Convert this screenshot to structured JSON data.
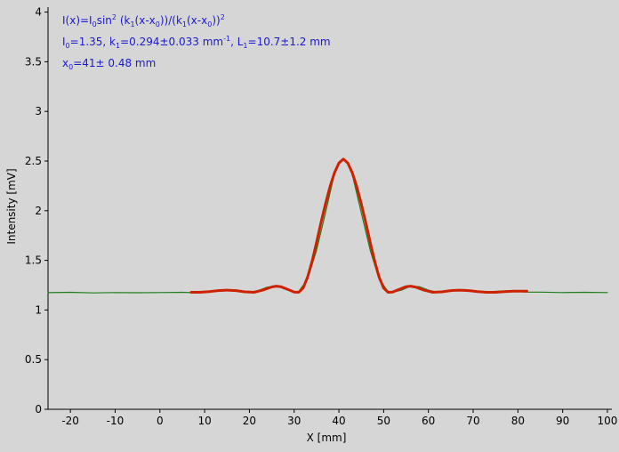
{
  "chart_data": {
    "type": "line",
    "title": "",
    "xlabel": "X [mm]",
    "ylabel": "Intensity [mV]",
    "xlim": [
      -25,
      101
    ],
    "ylim": [
      0,
      4.05
    ],
    "x_ticks": [
      -20,
      -10,
      0,
      10,
      20,
      30,
      40,
      50,
      60,
      70,
      80,
      90,
      100
    ],
    "y_ticks": [
      0,
      0.5,
      1,
      1.5,
      2,
      2.5,
      3,
      3.5,
      4
    ],
    "grid": false,
    "colors": {
      "background": "#d6d6d6",
      "axes": "#000000",
      "measured": "#1e7d1e",
      "fit": "#cc2200",
      "annotation": "#1a1acc"
    },
    "annotation": {
      "formula": {
        "p1": "I(x)=I",
        "s1": "0",
        "p2": "sin",
        "sup1": "2",
        "p3": " (k",
        "s2": "1",
        "p4": "(x-x",
        "s3": "0",
        "p5": "))/(k",
        "s4": "1",
        "p6": "(x-x",
        "s5": "0",
        "p7": "))",
        "sup2": "2"
      },
      "params": {
        "p1": "I",
        "s1": "0",
        "p2": "=1.35,  k",
        "s2": "1",
        "p3": "=0.294±0.033 mm",
        "sup1": "-1",
        "p4": ",   L",
        "s3": "1",
        "p5": "=10.7±1.2 mm"
      },
      "x0": {
        "p1": "x",
        "s1": "0",
        "p2": "=41±  0.48 mm"
      }
    },
    "series": [
      {
        "role": "measured",
        "x": [
          -25,
          -20,
          -15,
          -10,
          -5,
          0,
          5,
          7,
          10,
          13,
          15,
          17,
          20,
          22,
          24,
          26,
          28,
          30,
          31,
          33,
          35,
          37,
          39,
          40,
          41,
          42,
          43,
          45,
          47,
          49,
          51,
          52,
          54,
          56,
          58,
          60,
          62,
          64,
          66,
          68,
          70,
          72,
          74,
          76,
          78,
          80,
          82,
          85,
          90,
          95,
          100
        ],
        "y": [
          1.175,
          1.178,
          1.172,
          1.176,
          1.174,
          1.176,
          1.178,
          1.175,
          1.18,
          1.2,
          1.205,
          1.195,
          1.178,
          1.195,
          1.23,
          1.24,
          1.215,
          1.178,
          1.185,
          1.31,
          1.6,
          1.98,
          2.37,
          2.48,
          2.52,
          2.48,
          2.36,
          1.98,
          1.6,
          1.31,
          1.185,
          1.178,
          1.2,
          1.24,
          1.235,
          1.2,
          1.178,
          1.185,
          1.2,
          1.205,
          1.185,
          1.178,
          1.185,
          1.19,
          1.19,
          1.185,
          1.18,
          1.18,
          1.176,
          1.178,
          1.176
        ]
      },
      {
        "role": "fit",
        "x": [
          7,
          9,
          11,
          13,
          15,
          17,
          19,
          21,
          23,
          25,
          26,
          27,
          29,
          30,
          31,
          32,
          33,
          34,
          35,
          36,
          37,
          38,
          39,
          40,
          41,
          42,
          43,
          44,
          45,
          46,
          47,
          48,
          49,
          50,
          51,
          52,
          53,
          55,
          56,
          57,
          59,
          61,
          63,
          65,
          67,
          69,
          71,
          73,
          75,
          77,
          79,
          82
        ],
        "y": [
          1.178,
          1.178,
          1.185,
          1.195,
          1.2,
          1.195,
          1.183,
          1.178,
          1.2,
          1.232,
          1.24,
          1.235,
          1.2,
          1.18,
          1.178,
          1.22,
          1.33,
          1.49,
          1.68,
          1.88,
          2.07,
          2.24,
          2.38,
          2.48,
          2.52,
          2.48,
          2.38,
          2.24,
          2.07,
          1.88,
          1.68,
          1.49,
          1.33,
          1.22,
          1.178,
          1.18,
          1.2,
          1.235,
          1.24,
          1.232,
          1.2,
          1.178,
          1.183,
          1.195,
          1.2,
          1.195,
          1.185,
          1.178,
          1.178,
          1.185,
          1.19,
          1.19
        ]
      }
    ]
  }
}
